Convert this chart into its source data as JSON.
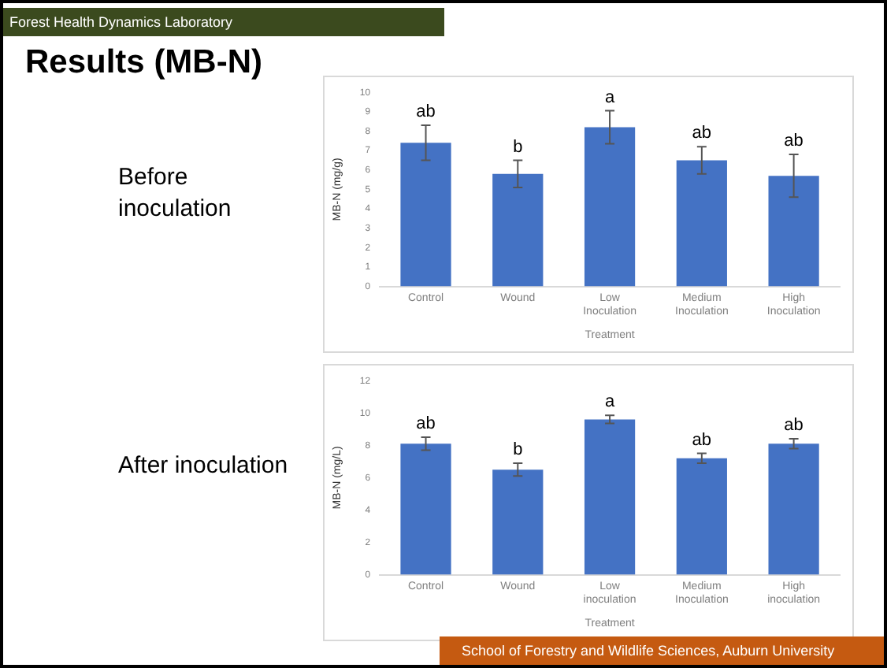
{
  "chart_data": [
    {
      "type": "bar",
      "title": "Results (MB-N)",
      "subtitle": "Before inoculation",
      "xlabel": "Treatment",
      "ylabel": "MB-N (mg/g)",
      "categories": [
        "Control",
        "Wound",
        "Low Inoculation",
        "Medium Inoculation",
        "High Inoculation"
      ],
      "values": [
        7.4,
        5.8,
        8.2,
        6.5,
        5.7
      ],
      "errors": [
        0.9,
        0.7,
        0.85,
        0.7,
        1.1
      ],
      "color": "#4472c4",
      "ylim": [
        0,
        10
      ],
      "yticks": [
        0,
        1,
        2,
        3,
        4,
        5,
        6,
        7,
        8,
        9,
        10
      ],
      "grid": false,
      "legend": false,
      "annotations": [
        "Forest Health Dynamics Laboratory",
        "School of Forestry and Wildlife Sciences, Auburn University",
        {
          "text": "ab",
          "x": "Control",
          "y": 8.3
        },
        {
          "text": "b",
          "x": "Wound",
          "y": 6.5
        },
        {
          "text": "a",
          "x": "Low Inoculation",
          "y": 9.05
        },
        {
          "text": "ab",
          "x": "Medium Inoculation",
          "y": 7.2
        },
        {
          "text": "ab",
          "x": "High Inoculation",
          "y": 6.8
        }
      ]
    },
    {
      "type": "bar",
      "subtitle": "After inoculation",
      "xlabel": "Treatment",
      "ylabel": "MB-N (mg/L)",
      "categories": [
        "Control",
        "Wound",
        "Low inoculation",
        "Medium Inoculation",
        "High inoculation"
      ],
      "values": [
        8.1,
        6.5,
        9.6,
        7.2,
        8.1
      ],
      "errors": [
        0.4,
        0.4,
        0.25,
        0.3,
        0.3
      ],
      "color": "#4472c4",
      "ylim": [
        0,
        12
      ],
      "yticks": [
        0,
        2,
        4,
        6,
        8,
        10,
        12
      ],
      "grid": false,
      "legend": false,
      "annotations": [
        {
          "text": "ab",
          "x": "Control",
          "y": 8.5
        },
        {
          "text": "b",
          "x": "Wound",
          "y": 6.9
        },
        {
          "text": "a",
          "x": "Low inoculation",
          "y": 9.85
        },
        {
          "text": "ab",
          "x": "Medium Inoculation",
          "y": 7.5
        },
        {
          "text": "ab",
          "x": "High inoculation",
          "y": 8.4
        }
      ]
    }
  ]
}
